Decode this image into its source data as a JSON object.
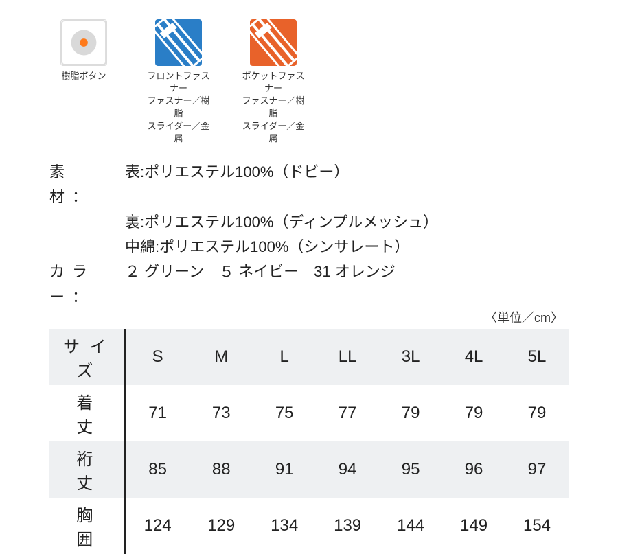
{
  "icons": [
    {
      "name": "resin-button-icon",
      "caption": "樹脂ボタン",
      "bg": "#ffffff",
      "border": "#dcdcdc",
      "type": "button"
    },
    {
      "name": "front-fastener-icon",
      "caption": "フロントファスナー\nファスナー／樹脂\nスライダー／金属",
      "bg": "#2a7ec7",
      "border": "#2a7ec7",
      "type": "zipper"
    },
    {
      "name": "pocket-fastener-icon",
      "caption": "ポケットファスナー\nファスナー／樹脂\nスライダー／金属",
      "bg": "#e8622a",
      "border": "#e8622a",
      "type": "zipper"
    }
  ],
  "spec": {
    "material_label": "素　材：",
    "material_lines": [
      "表:ポリエステル100%（ドビー）",
      "裏:ポリエステル100%（ディンプルメッシュ）",
      "中綿:ポリエステル100%（シンサレート）"
    ],
    "color_label": "カラー：",
    "color_value": "２ グリーン　５ ネイビー　31 オレンジ"
  },
  "unit_note": "〈単位／cm〉",
  "size_table": {
    "header_label": "サイズ",
    "columns": [
      "S",
      "M",
      "L",
      "LL",
      "3L",
      "4L",
      "5L"
    ],
    "rows": [
      {
        "label": "着　丈",
        "values": [
          71,
          73,
          75,
          77,
          79,
          79,
          79
        ]
      },
      {
        "label": "裄　丈",
        "values": [
          85,
          88,
          91,
          94,
          95,
          96,
          97
        ]
      },
      {
        "label": "胸　囲",
        "values": [
          124,
          129,
          134,
          139,
          144,
          149,
          154
        ]
      }
    ],
    "shade_color": "#eef0f2"
  }
}
